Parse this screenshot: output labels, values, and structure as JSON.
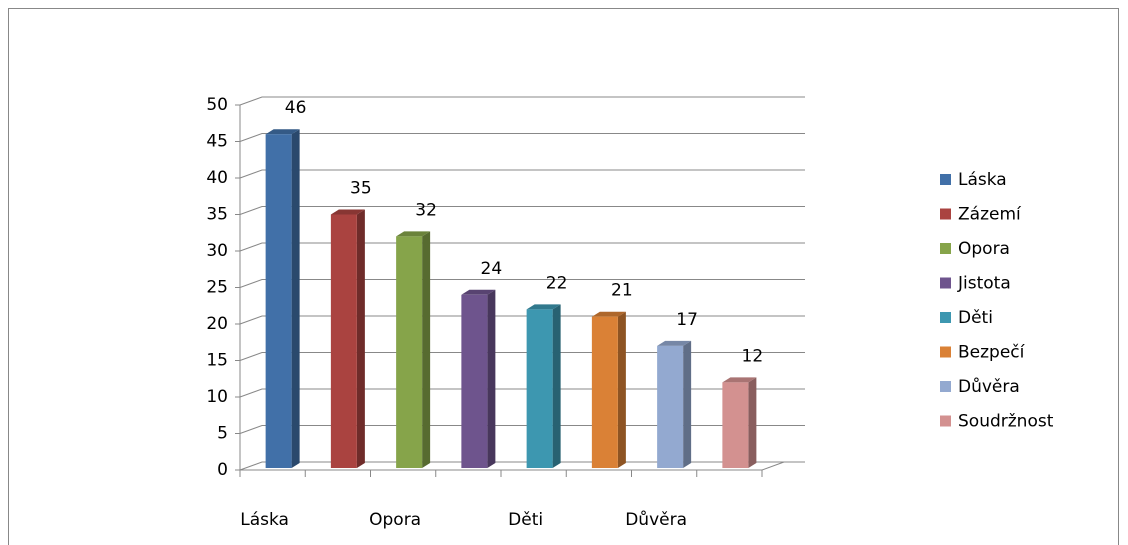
{
  "chart_data": {
    "type": "bar3d",
    "categories": [
      "Láska",
      null,
      "Opora",
      null,
      "Děti",
      null,
      "Důvěra",
      null
    ],
    "values": [
      46,
      35,
      32,
      24,
      22,
      21,
      17,
      12
    ],
    "colors": [
      "#4170a8",
      "#aa4340",
      "#86a44a",
      "#6e548d",
      "#3d97b0",
      "#da8136",
      "#93a9d0",
      "#d39190"
    ],
    "legend": [
      "Láska",
      "Zázemí",
      "Opora",
      "Jistota",
      "Děti",
      "Bezpečí",
      "Důvěra",
      "Soudržnost"
    ],
    "ylim": [
      0,
      50
    ],
    "yticks": [
      0,
      5,
      10,
      15,
      20,
      25,
      30,
      35,
      40,
      45,
      50
    ],
    "grid": true
  }
}
